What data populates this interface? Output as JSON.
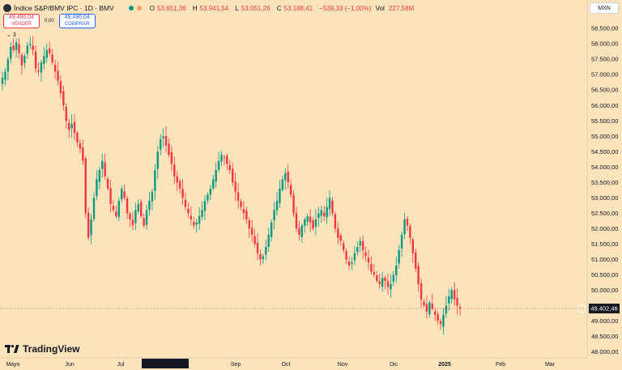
{
  "header": {
    "title": "Índice S&P/BMV IPC · 1D · BMV",
    "ohlc": {
      "o_key": "O",
      "o": "53.651,36",
      "h_key": "H",
      "h": "53.941,54",
      "l_key": "L",
      "l": "53.051,26",
      "c_key": "C",
      "c": "53.188,41",
      "change": "−539,33 (−1,00%)",
      "vol_key": "Vol",
      "vol": "227,58M"
    }
  },
  "trade": {
    "sell_price": "49.490,04",
    "sell_label": "VENDER",
    "spread": "0,00",
    "buy_price": "49.490,04",
    "buy_label": "COMPRAR"
  },
  "indicators_collapsed": "3",
  "currency": "MXN",
  "last_price_label": "49.402,46",
  "logo_text": "TradingView",
  "colors": {
    "up": "#089981",
    "down": "#f23645",
    "background": "#FBE3BC"
  },
  "chart_data": {
    "type": "candlestick",
    "y_ticks": [
      "48.000,00",
      "48.500,00",
      "49.000,00",
      "49.500,00",
      "50.000,00",
      "50.500,00",
      "51.000,00",
      "51.500,00",
      "52.000,00",
      "52.500,00",
      "53.000,00",
      "53.500,00",
      "54.000,00",
      "54.500,00",
      "55.000,00",
      "55.500,00",
      "56.000,00",
      "56.500,00",
      "57.000,00",
      "57.500,00",
      "58.000,00",
      "58.500,00"
    ],
    "x_labels": [
      "Mayo",
      "Jun",
      "Jul",
      "mié 24 Jul '24",
      "Sep",
      "Oct",
      "Nov",
      "Dic",
      "2025",
      "Feb",
      "Mar"
    ],
    "ylim": [
      47800,
      58900
    ],
    "last_price": 49402.46,
    "closes": [
      56900,
      57100,
      57500,
      57900,
      57800,
      58050,
      57700,
      57300,
      57600,
      57950,
      58000,
      57800,
      57200,
      57100,
      57400,
      57600,
      57800,
      57700,
      57400,
      57100,
      56800,
      56400,
      56000,
      55500,
      55200,
      55400,
      55100,
      54800,
      54600,
      54200,
      52500,
      51700,
      52300,
      53000,
      53600,
      53900,
      54200,
      53700,
      53300,
      52800,
      52600,
      52400,
      52900,
      53300,
      53000,
      52500,
      52300,
      52100,
      52600,
      52800,
      52400,
      52100,
      52600,
      52900,
      53200,
      53900,
      54500,
      54900,
      55000,
      54700,
      54400,
      54100,
      53700,
      53500,
      53300,
      53000,
      52700,
      52500,
      52300,
      52100,
      52200,
      52400,
      52600,
      52900,
      53100,
      53300,
      53600,
      53900,
      54200,
      54400,
      54300,
      54100,
      53900,
      53500,
      53200,
      52900,
      52700,
      52500,
      52300,
      52000,
      51800,
      51500,
      51200,
      51000,
      51100,
      51400,
      51800,
      52200,
      52600,
      52900,
      53300,
      53600,
      53800,
      53500,
      53100,
      52500,
      52000,
      51800,
      52100,
      52300,
      52400,
      52200,
      52000,
      52300,
      52500,
      52600,
      52400,
      52700,
      53000,
      52500,
      52000,
      51700,
      51600,
      51300,
      51000,
      50800,
      50900,
      51200,
      51400,
      51600,
      51300,
      51100,
      50900,
      50600,
      50500,
      50300,
      50200,
      50400,
      50300,
      50100,
      50200,
      50500,
      50800,
      51300,
      51800,
      52300,
      52100,
      51700,
      51200,
      50700,
      50200,
      49700,
      49500,
      49300,
      49600,
      49400,
      49200,
      49000,
      48900,
      49200,
      49500,
      49800,
      50000,
      49700,
      49500,
      49400
    ]
  }
}
